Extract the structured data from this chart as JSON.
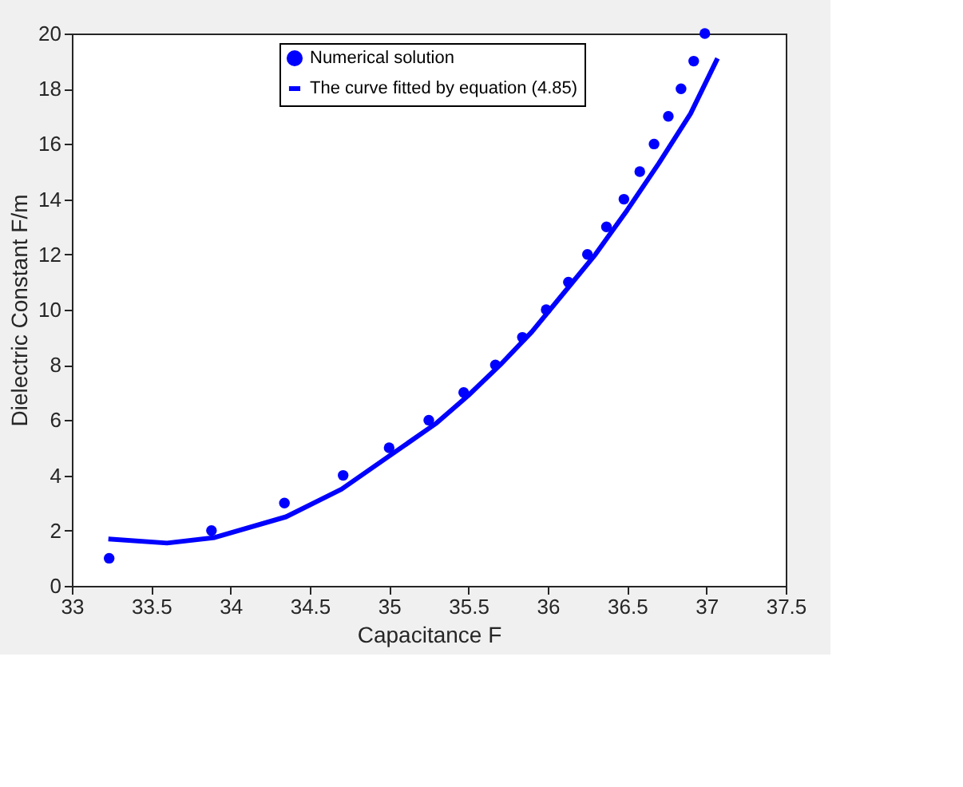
{
  "chart_data": {
    "type": "scatter",
    "xlabel": "Capacitance F",
    "ylabel": "Dielectric Constant F/m",
    "xlim": [
      33,
      37.5
    ],
    "xticks": [
      33,
      33.5,
      34,
      34.5,
      35,
      35.5,
      36,
      36.5,
      37,
      37.5
    ],
    "ylim": [
      0,
      20
    ],
    "yticks": [
      0,
      2,
      4,
      6,
      8,
      10,
      12,
      14,
      16,
      18,
      20
    ],
    "grid": false,
    "legend": "top",
    "series": [
      {
        "name": "Numerical solution",
        "marker": "circle",
        "color": "#0000ff",
        "x": [
          33.235,
          33.88,
          34.34,
          34.71,
          35.0,
          35.25,
          35.47,
          35.67,
          35.84,
          35.99,
          36.13,
          36.25,
          36.37,
          36.48,
          36.58,
          36.67,
          36.76,
          36.84,
          36.92,
          36.99
        ],
        "values": [
          1,
          2,
          3,
          4,
          5,
          6,
          7,
          8,
          9,
          10,
          11,
          12,
          13,
          14,
          15,
          16,
          17,
          18,
          19,
          20
        ]
      },
      {
        "name": "The curve fitted by equation (4.85)",
        "type": "line",
        "line_style": "solid",
        "color": "#0000ff",
        "x": [
          33.23,
          33.6,
          33.9,
          34.35,
          34.7,
          35.0,
          35.3,
          35.5,
          35.7,
          35.9,
          36.1,
          36.3,
          36.5,
          36.7,
          36.9,
          37.07
        ],
        "values": [
          1.7,
          1.55,
          1.75,
          2.5,
          3.5,
          4.7,
          5.9,
          6.9,
          8.0,
          9.2,
          10.6,
          12.0,
          13.6,
          15.3,
          17.1,
          19.1
        ]
      }
    ]
  }
}
